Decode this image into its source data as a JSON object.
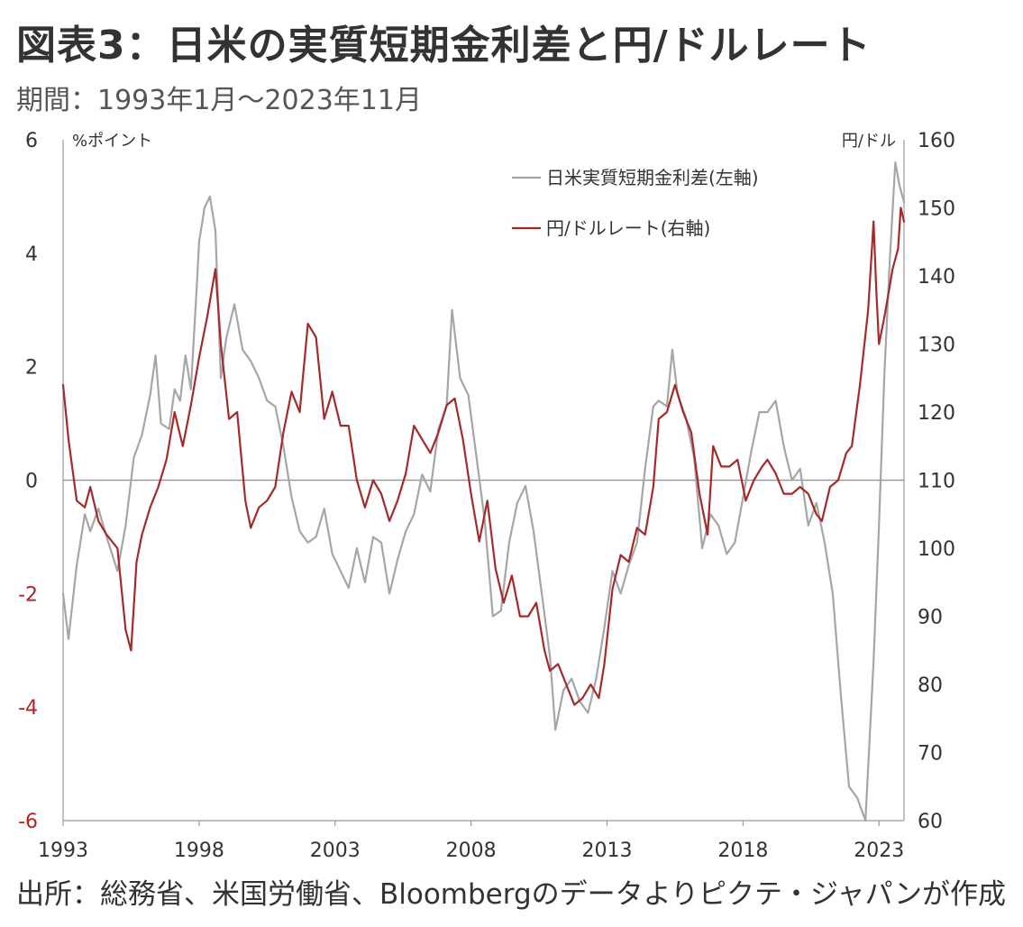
{
  "title": "図表3：日米の実質短期金利差と円/ドルレート",
  "subtitle": "期間：1993年1月～2023年11月",
  "source": "出所：総務省、米国労働省、Bloombergのデータよりピクテ・ジャパンが作成",
  "chart_data": {
    "type": "line",
    "left_axis": {
      "unit_label": "%ポイント",
      "range": [
        -6,
        6
      ],
      "ticks": [
        6,
        4,
        2,
        0,
        -2,
        -4,
        -6
      ],
      "tick_labels": [
        "6",
        "4",
        "2",
        "0",
        "-2",
        "-4",
        "-6"
      ],
      "negative_color": "#b22222"
    },
    "right_axis": {
      "unit_label": "円/ドル",
      "range": [
        60,
        160
      ],
      "ticks": [
        160,
        150,
        140,
        130,
        120,
        110,
        100,
        90,
        80,
        70,
        60
      ],
      "tick_labels": [
        "160",
        "150",
        "140",
        "130",
        "120",
        "110",
        "100",
        "90",
        "80",
        "70",
        "60"
      ]
    },
    "x_axis": {
      "range": [
        1993.0,
        2023.92
      ],
      "ticks": [
        1993,
        1998,
        2003,
        2008,
        2013,
        2018,
        2023
      ],
      "tick_labels": [
        "1993",
        "1998",
        "2003",
        "2008",
        "2013",
        "2018",
        "2023"
      ]
    },
    "legend_position": "top-right",
    "zero_line": true,
    "series": [
      {
        "name": "日米実質短期金利差(左軸)",
        "axis": "left",
        "color": "#a6a6a6",
        "points": [
          [
            1993.0,
            -2.0
          ],
          [
            1993.2,
            -2.8
          ],
          [
            1993.5,
            -1.5
          ],
          [
            1993.8,
            -0.6
          ],
          [
            1994.0,
            -0.9
          ],
          [
            1994.3,
            -0.5
          ],
          [
            1994.6,
            -1.0
          ],
          [
            1995.0,
            -1.6
          ],
          [
            1995.3,
            -0.8
          ],
          [
            1995.6,
            0.4
          ],
          [
            1995.9,
            0.8
          ],
          [
            1996.2,
            1.5
          ],
          [
            1996.4,
            2.2
          ],
          [
            1996.6,
            1.0
          ],
          [
            1996.9,
            0.9
          ],
          [
            1997.1,
            1.6
          ],
          [
            1997.3,
            1.4
          ],
          [
            1997.5,
            2.2
          ],
          [
            1997.7,
            1.6
          ],
          [
            1997.9,
            3.3
          ],
          [
            1998.0,
            4.2
          ],
          [
            1998.2,
            4.8
          ],
          [
            1998.4,
            5.0
          ],
          [
            1998.6,
            4.4
          ],
          [
            1998.8,
            1.8
          ],
          [
            1999.0,
            2.5
          ],
          [
            1999.3,
            3.1
          ],
          [
            1999.6,
            2.3
          ],
          [
            1999.9,
            2.1
          ],
          [
            2000.2,
            1.8
          ],
          [
            2000.5,
            1.4
          ],
          [
            2000.8,
            1.3
          ],
          [
            2001.1,
            0.6
          ],
          [
            2001.4,
            -0.3
          ],
          [
            2001.7,
            -0.9
          ],
          [
            2002.0,
            -1.1
          ],
          [
            2002.3,
            -1.0
          ],
          [
            2002.6,
            -0.5
          ],
          [
            2002.9,
            -1.3
          ],
          [
            2003.2,
            -1.6
          ],
          [
            2003.5,
            -1.9
          ],
          [
            2003.8,
            -1.2
          ],
          [
            2004.1,
            -1.8
          ],
          [
            2004.4,
            -1.0
          ],
          [
            2004.7,
            -1.1
          ],
          [
            2005.0,
            -2.0
          ],
          [
            2005.3,
            -1.4
          ],
          [
            2005.6,
            -0.9
          ],
          [
            2005.9,
            -0.6
          ],
          [
            2006.2,
            0.1
          ],
          [
            2006.5,
            -0.2
          ],
          [
            2006.8,
            0.9
          ],
          [
            2007.1,
            1.3
          ],
          [
            2007.3,
            3.0
          ],
          [
            2007.6,
            1.8
          ],
          [
            2007.9,
            1.5
          ],
          [
            2008.2,
            0.4
          ],
          [
            2008.5,
            -0.7
          ],
          [
            2008.8,
            -2.4
          ],
          [
            2009.1,
            -2.3
          ],
          [
            2009.4,
            -1.1
          ],
          [
            2009.7,
            -0.4
          ],
          [
            2010.0,
            -0.1
          ],
          [
            2010.3,
            -0.9
          ],
          [
            2010.6,
            -2.0
          ],
          [
            2010.9,
            -3.1
          ],
          [
            2011.1,
            -4.4
          ],
          [
            2011.4,
            -3.7
          ],
          [
            2011.7,
            -3.5
          ],
          [
            2012.0,
            -3.9
          ],
          [
            2012.3,
            -4.1
          ],
          [
            2012.6,
            -3.5
          ],
          [
            2012.9,
            -2.6
          ],
          [
            2013.2,
            -1.6
          ],
          [
            2013.5,
            -2.0
          ],
          [
            2013.8,
            -1.5
          ],
          [
            2014.1,
            -1.1
          ],
          [
            2014.4,
            0.2
          ],
          [
            2014.7,
            1.3
          ],
          [
            2014.9,
            1.4
          ],
          [
            2015.2,
            1.3
          ],
          [
            2015.4,
            2.3
          ],
          [
            2015.6,
            1.5
          ],
          [
            2015.9,
            1.1
          ],
          [
            2016.2,
            0.4
          ],
          [
            2016.5,
            -1.2
          ],
          [
            2016.8,
            -0.6
          ],
          [
            2017.1,
            -0.8
          ],
          [
            2017.4,
            -1.3
          ],
          [
            2017.7,
            -1.1
          ],
          [
            2018.0,
            -0.3
          ],
          [
            2018.3,
            0.5
          ],
          [
            2018.6,
            1.2
          ],
          [
            2018.9,
            1.2
          ],
          [
            2019.2,
            1.4
          ],
          [
            2019.5,
            0.6
          ],
          [
            2019.8,
            0.0
          ],
          [
            2020.1,
            0.2
          ],
          [
            2020.4,
            -0.8
          ],
          [
            2020.7,
            -0.4
          ],
          [
            2021.0,
            -1.1
          ],
          [
            2021.3,
            -2.0
          ],
          [
            2021.6,
            -3.8
          ],
          [
            2021.9,
            -5.4
          ],
          [
            2022.2,
            -5.6
          ],
          [
            2022.5,
            -6.0
          ],
          [
            2022.8,
            -3.2
          ],
          [
            2023.0,
            -0.8
          ],
          [
            2023.2,
            1.9
          ],
          [
            2023.4,
            3.9
          ],
          [
            2023.6,
            5.6
          ],
          [
            2023.75,
            5.2
          ],
          [
            2023.92,
            4.9
          ]
        ]
      },
      {
        "name": "円/ドルレート(右軸)",
        "axis": "right",
        "color": "#a52a2a",
        "points": [
          [
            1993.0,
            124
          ],
          [
            1993.2,
            116
          ],
          [
            1993.5,
            107
          ],
          [
            1993.8,
            106
          ],
          [
            1994.0,
            109
          ],
          [
            1994.3,
            104
          ],
          [
            1994.6,
            102
          ],
          [
            1995.0,
            100
          ],
          [
            1995.3,
            88
          ],
          [
            1995.5,
            85
          ],
          [
            1995.7,
            98
          ],
          [
            1995.9,
            102
          ],
          [
            1996.2,
            106
          ],
          [
            1996.5,
            109
          ],
          [
            1996.8,
            113
          ],
          [
            1997.1,
            120
          ],
          [
            1997.4,
            115
          ],
          [
            1997.7,
            121
          ],
          [
            1998.0,
            128
          ],
          [
            1998.3,
            134
          ],
          [
            1998.6,
            141
          ],
          [
            1998.8,
            130
          ],
          [
            1999.1,
            119
          ],
          [
            1999.4,
            120
          ],
          [
            1999.7,
            107
          ],
          [
            1999.9,
            103
          ],
          [
            2000.2,
            106
          ],
          [
            2000.5,
            107
          ],
          [
            2000.8,
            109
          ],
          [
            2001.1,
            117
          ],
          [
            2001.4,
            123
          ],
          [
            2001.7,
            120
          ],
          [
            2002.0,
            133
          ],
          [
            2002.3,
            131
          ],
          [
            2002.6,
            119
          ],
          [
            2002.9,
            123
          ],
          [
            2003.2,
            118
          ],
          [
            2003.5,
            118
          ],
          [
            2003.8,
            110
          ],
          [
            2004.1,
            106
          ],
          [
            2004.4,
            110
          ],
          [
            2004.7,
            108
          ],
          [
            2005.0,
            104
          ],
          [
            2005.3,
            107
          ],
          [
            2005.6,
            111
          ],
          [
            2005.9,
            118
          ],
          [
            2006.2,
            116
          ],
          [
            2006.5,
            114
          ],
          [
            2006.8,
            117
          ],
          [
            2007.1,
            121
          ],
          [
            2007.4,
            122
          ],
          [
            2007.7,
            116
          ],
          [
            2008.0,
            108
          ],
          [
            2008.3,
            101
          ],
          [
            2008.6,
            107
          ],
          [
            2008.9,
            97
          ],
          [
            2009.2,
            92
          ],
          [
            2009.5,
            96
          ],
          [
            2009.8,
            90
          ],
          [
            2010.1,
            90
          ],
          [
            2010.4,
            92
          ],
          [
            2010.7,
            85
          ],
          [
            2010.9,
            82
          ],
          [
            2011.2,
            83
          ],
          [
            2011.5,
            80
          ],
          [
            2011.8,
            77
          ],
          [
            2012.1,
            78
          ],
          [
            2012.4,
            80
          ],
          [
            2012.7,
            78
          ],
          [
            2012.9,
            83
          ],
          [
            2013.2,
            94
          ],
          [
            2013.5,
            99
          ],
          [
            2013.8,
            98
          ],
          [
            2014.1,
            103
          ],
          [
            2014.4,
            102
          ],
          [
            2014.7,
            109
          ],
          [
            2014.9,
            119
          ],
          [
            2015.2,
            120
          ],
          [
            2015.5,
            124
          ],
          [
            2015.8,
            120
          ],
          [
            2016.1,
            117
          ],
          [
            2016.4,
            108
          ],
          [
            2016.7,
            102
          ],
          [
            2016.9,
            115
          ],
          [
            2017.2,
            112
          ],
          [
            2017.5,
            112
          ],
          [
            2017.8,
            113
          ],
          [
            2018.1,
            107
          ],
          [
            2018.4,
            110
          ],
          [
            2018.7,
            112
          ],
          [
            2018.9,
            113
          ],
          [
            2019.2,
            111
          ],
          [
            2019.5,
            108
          ],
          [
            2019.8,
            108
          ],
          [
            2020.1,
            109
          ],
          [
            2020.4,
            108
          ],
          [
            2020.7,
            105
          ],
          [
            2020.9,
            104
          ],
          [
            2021.2,
            109
          ],
          [
            2021.5,
            110
          ],
          [
            2021.8,
            114
          ],
          [
            2022.0,
            115
          ],
          [
            2022.3,
            124
          ],
          [
            2022.6,
            135
          ],
          [
            2022.8,
            148
          ],
          [
            2022.9,
            138
          ],
          [
            2023.0,
            130
          ],
          [
            2023.2,
            134
          ],
          [
            2023.5,
            141
          ],
          [
            2023.7,
            144
          ],
          [
            2023.8,
            150
          ],
          [
            2023.92,
            148
          ]
        ]
      }
    ]
  }
}
